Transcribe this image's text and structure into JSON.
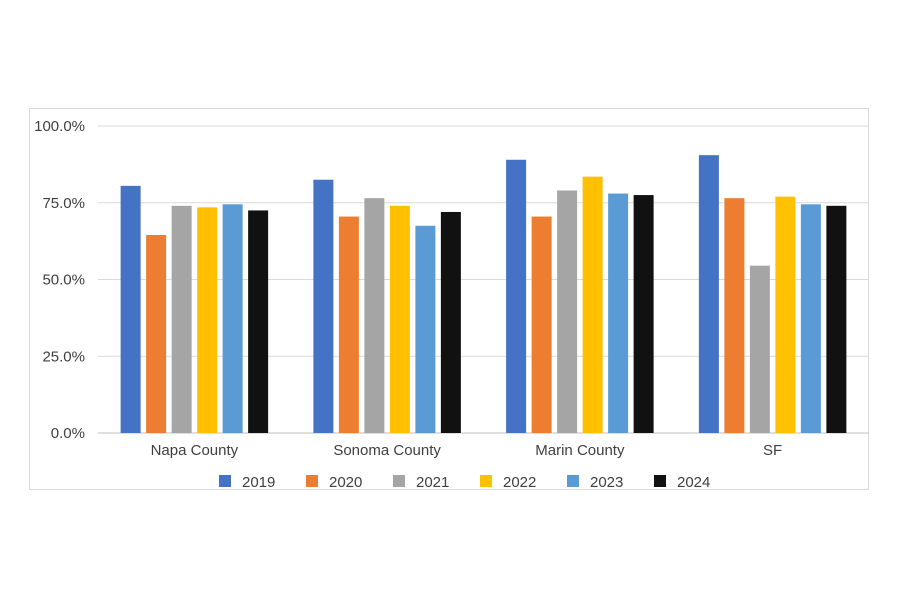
{
  "chart_data": {
    "type": "bar",
    "categories": [
      "Napa County",
      "Sonoma County",
      "Marin County",
      "SF"
    ],
    "series": [
      {
        "name": "2019",
        "color": "#4472c4",
        "values": [
          80.5,
          82.5,
          89.0,
          90.5
        ]
      },
      {
        "name": "2020",
        "color": "#ed7d31",
        "values": [
          64.5,
          70.5,
          70.5,
          76.5
        ]
      },
      {
        "name": "2021",
        "color": "#a5a5a5",
        "values": [
          74.0,
          76.5,
          79.0,
          54.5
        ]
      },
      {
        "name": "2022",
        "color": "#ffc000",
        "values": [
          73.5,
          74.0,
          83.5,
          77.0
        ]
      },
      {
        "name": "2023",
        "color": "#5b9bd5",
        "values": [
          74.5,
          67.5,
          78.0,
          74.5
        ]
      },
      {
        "name": "2024",
        "color": "#111111",
        "values": [
          72.5,
          72.0,
          77.5,
          74.0
        ]
      }
    ],
    "y_ticks": [
      "0.0%",
      "25.0%",
      "50.0%",
      "75.0%",
      "100.0%"
    ],
    "ylim": [
      0,
      100
    ],
    "grid": true,
    "legend_position": "bottom"
  }
}
